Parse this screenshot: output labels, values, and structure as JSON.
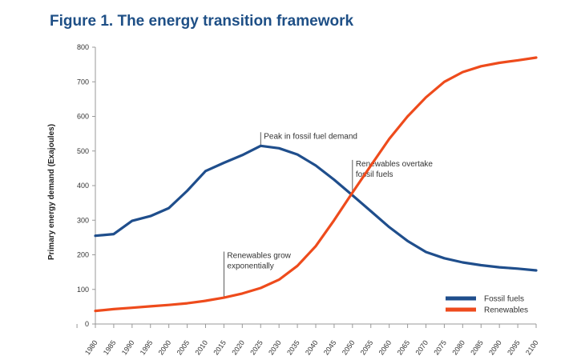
{
  "figure": {
    "title": "Figure 1. The energy transition framework"
  },
  "colors": {
    "title": "#1e4f86",
    "fossil": "#1f4e8c",
    "renewables": "#ee4b1c",
    "axis": "#999999"
  },
  "chart_data": {
    "type": "line",
    "title": "Figure 1. The energy transition framework",
    "xlabel": "",
    "ylabel": "Primary energy demand (Exajoules)",
    "ylim": [
      0,
      800
    ],
    "yticks": [
      0,
      100,
      200,
      300,
      400,
      500,
      600,
      700,
      800
    ],
    "grid": false,
    "legend_position": "bottom-right",
    "x": [
      1980,
      1985,
      1990,
      1995,
      2000,
      2005,
      2010,
      2015,
      2020,
      2025,
      2030,
      2035,
      2040,
      2045,
      2050,
      2055,
      2060,
      2065,
      2070,
      2075,
      2080,
      2085,
      2090,
      2095,
      2100
    ],
    "series": [
      {
        "name": "Fossil fuels",
        "color": "#1f4e8c",
        "values": [
          255,
          260,
          298,
          312,
          335,
          385,
          442,
          466,
          488,
          515,
          508,
          490,
          458,
          417,
          372,
          326,
          280,
          240,
          208,
          190,
          178,
          170,
          164,
          160,
          155
        ]
      },
      {
        "name": "Renewables",
        "color": "#ee4b1c",
        "values": [
          38,
          43,
          47,
          51,
          55,
          60,
          67,
          76,
          88,
          104,
          128,
          168,
          225,
          300,
          380,
          458,
          535,
          600,
          655,
          700,
          728,
          745,
          755,
          762,
          770
        ]
      }
    ],
    "annotations": [
      {
        "lines": [
          "Peak in fossil fuel demand"
        ],
        "x": 2025,
        "y": 515,
        "label_y": 545
      },
      {
        "lines": [
          "Renewables overtake",
          "fossil fuels"
        ],
        "x": 2050,
        "y": 376,
        "label_y": 465
      },
      {
        "lines": [
          "Renewables grow",
          "exponentially"
        ],
        "x": 2015,
        "y": 76,
        "label_y": 200
      }
    ]
  }
}
